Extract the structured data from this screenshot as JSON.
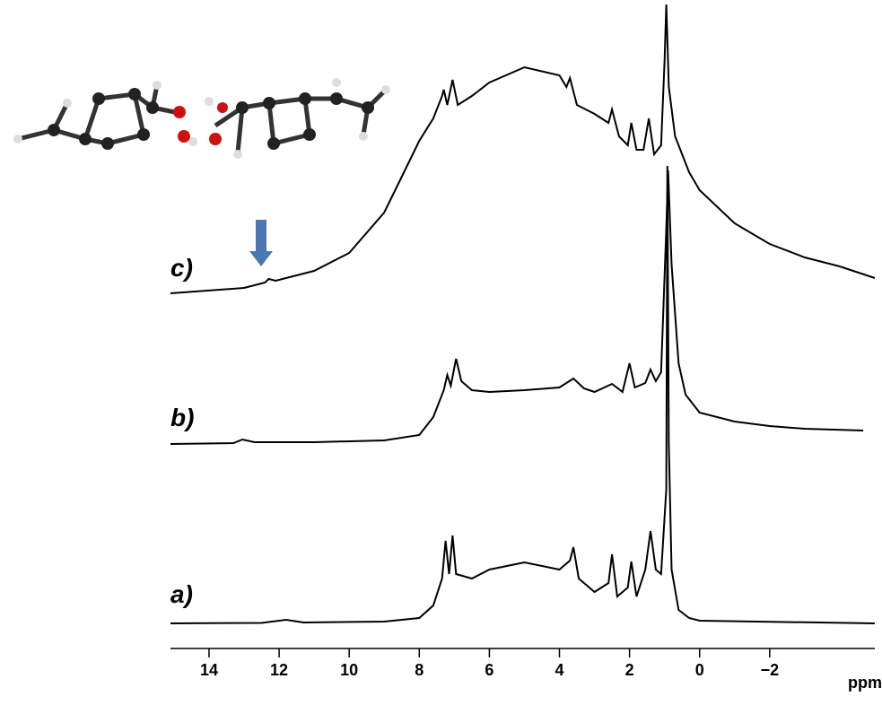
{
  "chart_data": {
    "type": "line",
    "x_label": "ppm",
    "xlim": [
      15.1,
      -5.0
    ],
    "xticks": [
      14,
      12,
      10,
      8,
      6,
      4,
      2,
      0,
      {
        "value": -2,
        "label": "−2"
      }
    ],
    "series": [
      {
        "name": "a)",
        "color": "#000000",
        "x": [
          15.1,
          12.5,
          11.8,
          11.3,
          9,
          8,
          7.6,
          7.35,
          7.25,
          7.15,
          7.05,
          6.95,
          6.5,
          6,
          5,
          4,
          3.7,
          3.6,
          3.45,
          3,
          2.6,
          2.5,
          2.35,
          2.05,
          1.95,
          1.8,
          1.55,
          1.4,
          1.25,
          1.1,
          0.95,
          0.92,
          0.88,
          0.8,
          0.6,
          0.3,
          0,
          -5
        ],
        "values": [
          0,
          0.5,
          4,
          1,
          2,
          6,
          20,
          50,
          92,
          55,
          98,
          55,
          50,
          60,
          68,
          60,
          70,
          85,
          50,
          35,
          45,
          77,
          30,
          40,
          69,
          30,
          60,
          103,
          60,
          55,
          150,
          510,
          200,
          60,
          15,
          6,
          3,
          0
        ]
      },
      {
        "name": "b)",
        "color": "#000000",
        "x": [
          15.1,
          13.3,
          13.05,
          12.7,
          11,
          9,
          8,
          7.6,
          7.3,
          7.2,
          7.1,
          6.95,
          6.8,
          6.5,
          6,
          5,
          4,
          3.6,
          3.3,
          3,
          2.5,
          2.2,
          2.0,
          1.85,
          1.55,
          1.4,
          1.25,
          1.1,
          0.95,
          0.9,
          0.8,
          0.6,
          0.4,
          0,
          -1,
          -2,
          -3,
          -4.67
        ],
        "values": [
          0,
          1,
          5,
          2,
          2,
          4,
          10,
          30,
          60,
          77,
          65,
          95,
          70,
          60,
          58,
          60,
          63,
          73,
          62,
          58,
          67,
          58,
          90,
          63,
          68,
          83,
          70,
          80,
          240,
          305,
          200,
          90,
          55,
          35,
          25,
          20,
          17,
          15
        ]
      },
      {
        "name": "c)",
        "color": "#000000",
        "x": [
          15.1,
          13,
          12.4,
          12.3,
          12.1,
          11,
          10,
          9,
          8.5,
          8,
          7.6,
          7.35,
          7.3,
          7.2,
          7.05,
          6.9,
          6.5,
          6,
          5,
          4,
          3.8,
          3.7,
          3.5,
          3,
          2.6,
          2.5,
          2.3,
          2.05,
          1.95,
          1.8,
          1.6,
          1.45,
          1.3,
          1.1,
          1.0,
          0.95,
          0.88,
          0.7,
          0.3,
          0,
          -1,
          -2,
          -3,
          -4,
          -5
        ],
        "values": [
          0,
          6,
          12,
          16,
          14,
          25,
          45,
          90,
          130,
          170,
          195,
          220,
          227,
          210,
          238,
          210,
          220,
          235,
          252,
          243,
          230,
          240,
          210,
          200,
          190,
          205,
          175,
          165,
          190,
          160,
          160,
          195,
          155,
          165,
          260,
          322,
          230,
          175,
          135,
          115,
          78,
          55,
          40,
          30,
          17
        ]
      }
    ]
  }
}
